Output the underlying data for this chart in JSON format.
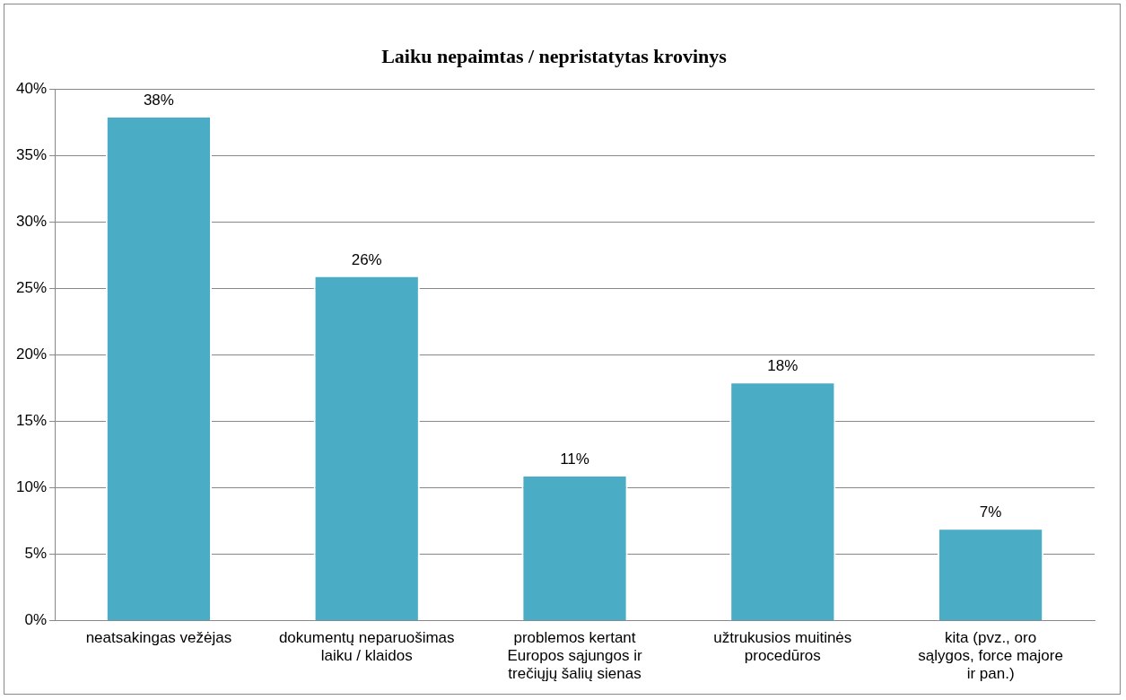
{
  "chart_data": {
    "type": "bar",
    "title": "Laiku nepaimtas / nepristatytas krovinys",
    "categories": [
      "neatsakingas vežėjas",
      "dokumentų neparuošimas laiku / klaidos",
      "problemos kertant Europos sąjungos ir trečiųjų šalių sienas",
      "užtrukusios muitinės procedūros",
      "kita (pvz., oro sąlygos, force majore ir pan.)"
    ],
    "values": [
      38,
      26,
      11,
      18,
      7
    ],
    "value_labels": [
      "38%",
      "26%",
      "11%",
      "18%",
      "7%"
    ],
    "color": "#4bacc6",
    "ylim": [
      0,
      40
    ],
    "yticks": [
      {
        "value": 0,
        "label": "0%"
      },
      {
        "value": 5,
        "label": "5%"
      },
      {
        "value": 10,
        "label": "10%"
      },
      {
        "value": 15,
        "label": "15%"
      },
      {
        "value": 20,
        "label": "20%"
      },
      {
        "value": 25,
        "label": "25%"
      },
      {
        "value": 30,
        "label": "30%"
      },
      {
        "value": 35,
        "label": "35%"
      },
      {
        "value": 40,
        "label": "40%"
      }
    ],
    "grid": "y",
    "legend": false
  }
}
